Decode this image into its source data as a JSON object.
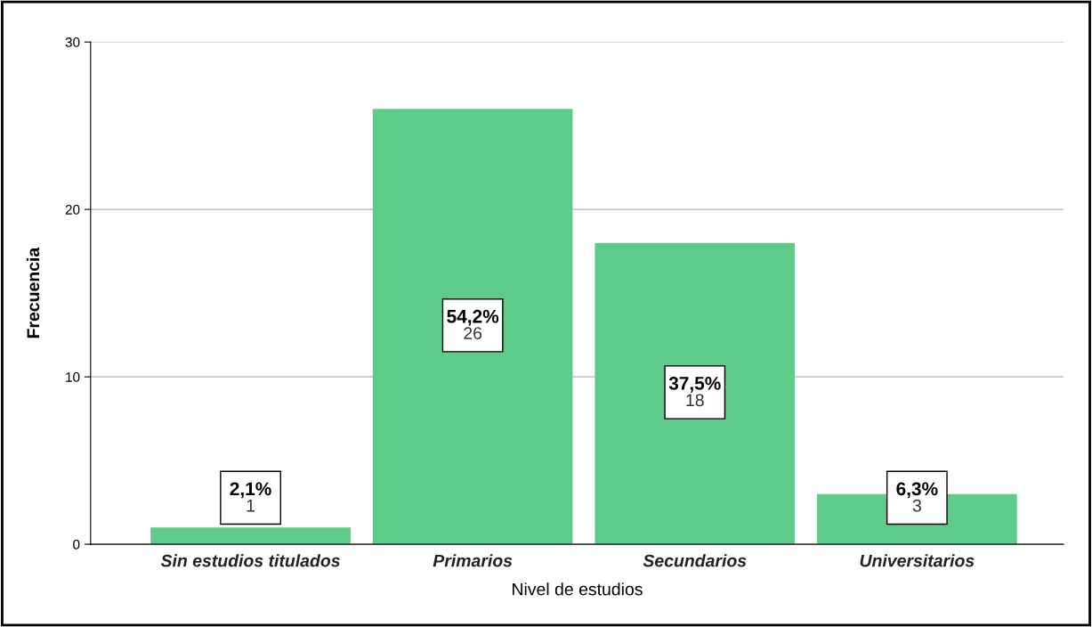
{
  "chart_data": {
    "type": "bar",
    "xlabel": "Nivel de estudios",
    "ylabel": "Frecuencia",
    "categories": [
      "Sin estudios titulados",
      "Primarios",
      "Secundarios",
      "Universitarios"
    ],
    "values": [
      1,
      26,
      18,
      3
    ],
    "annotations": [
      "2,1%",
      "54,2%",
      "37,5%",
      "6,3%"
    ],
    "data_labels": true,
    "color": "#5ecb8b",
    "ylim": [
      0,
      30
    ],
    "yticks": [
      0,
      10,
      20,
      30
    ],
    "grid": "y",
    "legend": false
  }
}
